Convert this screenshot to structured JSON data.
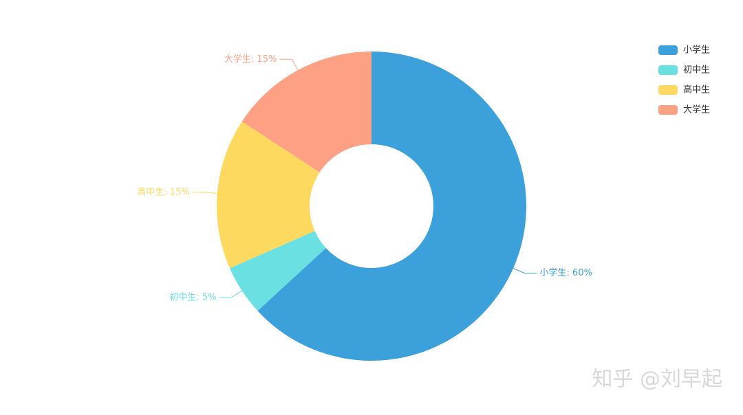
{
  "chart_data": {
    "type": "donut",
    "categories": [
      "小学生",
      "初中生",
      "高中生",
      "大学生"
    ],
    "values": [
      60,
      5,
      15,
      15
    ],
    "value_labels": [
      "小学生: 60%",
      "初中生: 5%",
      "高中生: 15%",
      "大学生: 15%"
    ],
    "colors": [
      "#3ca0db",
      "#6ae0e3",
      "#fed95f",
      "#fea084"
    ],
    "legend": "top-right"
  },
  "watermark": "知乎 @刘早起"
}
